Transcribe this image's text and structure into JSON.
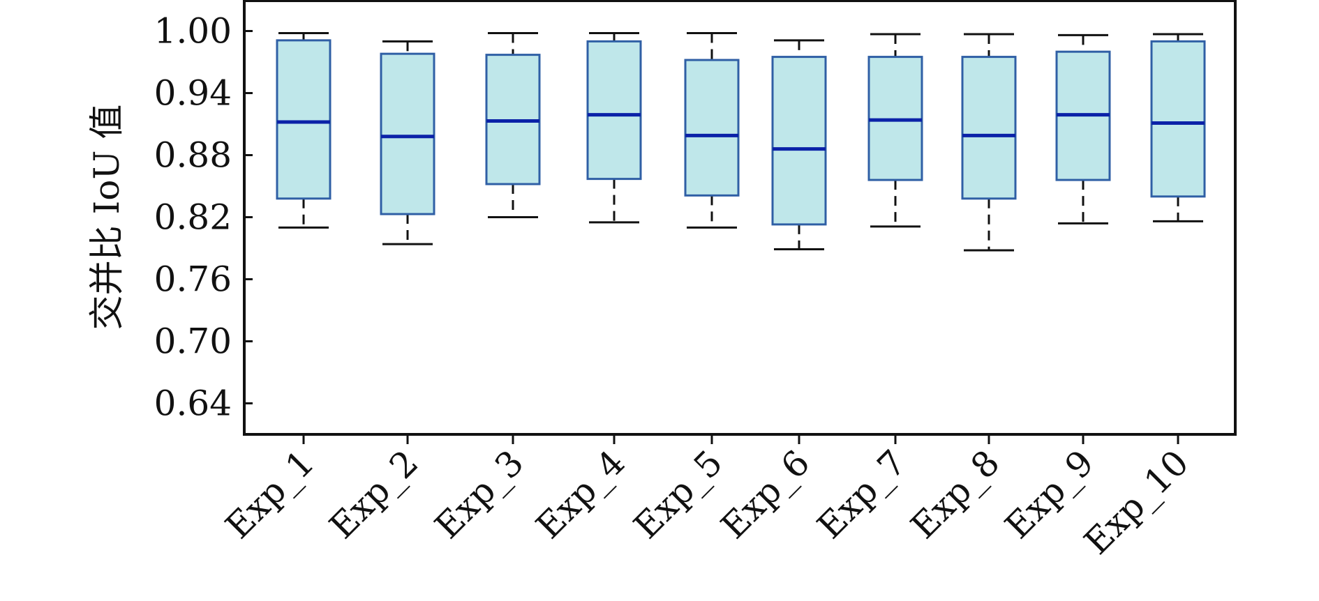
{
  "chart_data": {
    "type": "box",
    "ylabel": "交并比 IoU 值",
    "xlabel": "",
    "title": "",
    "ylim": [
      0.61,
      1.03
    ],
    "yticks": [
      "0.64",
      "0.70",
      "0.76",
      "0.82",
      "0.88",
      "0.94",
      "1.00"
    ],
    "grid": false,
    "categories": [
      "Exp_1",
      "Exp_2",
      "Exp_3",
      "Exp_4",
      "Exp_5",
      "Exp_6",
      "Exp_7",
      "Exp_8",
      "Exp_9",
      "Exp_10"
    ],
    "boxes": [
      {
        "min": 0.81,
        "q1": 0.838,
        "median": 0.912,
        "q3": 0.991,
        "max": 0.998
      },
      {
        "min": 0.794,
        "q1": 0.823,
        "median": 0.898,
        "q3": 0.978,
        "max": 0.99
      },
      {
        "min": 0.82,
        "q1": 0.852,
        "median": 0.913,
        "q3": 0.977,
        "max": 0.998
      },
      {
        "min": 0.815,
        "q1": 0.857,
        "median": 0.919,
        "q3": 0.99,
        "max": 0.998
      },
      {
        "min": 0.81,
        "q1": 0.841,
        "median": 0.899,
        "q3": 0.972,
        "max": 0.998
      },
      {
        "min": 0.789,
        "q1": 0.813,
        "median": 0.886,
        "q3": 0.975,
        "max": 0.991
      },
      {
        "min": 0.811,
        "q1": 0.856,
        "median": 0.914,
        "q3": 0.975,
        "max": 0.997
      },
      {
        "min": 0.788,
        "q1": 0.838,
        "median": 0.899,
        "q3": 0.975,
        "max": 0.997
      },
      {
        "min": 0.814,
        "q1": 0.856,
        "median": 0.919,
        "q3": 0.98,
        "max": 0.996
      },
      {
        "min": 0.816,
        "q1": 0.84,
        "median": 0.911,
        "q3": 0.99,
        "max": 0.997
      }
    ],
    "colors": {
      "box_fill": "#bfe7ea",
      "box_edge": "#2f5fa5",
      "median": "#0b22a8",
      "whisker": "#111111",
      "axis": "#111111"
    }
  }
}
